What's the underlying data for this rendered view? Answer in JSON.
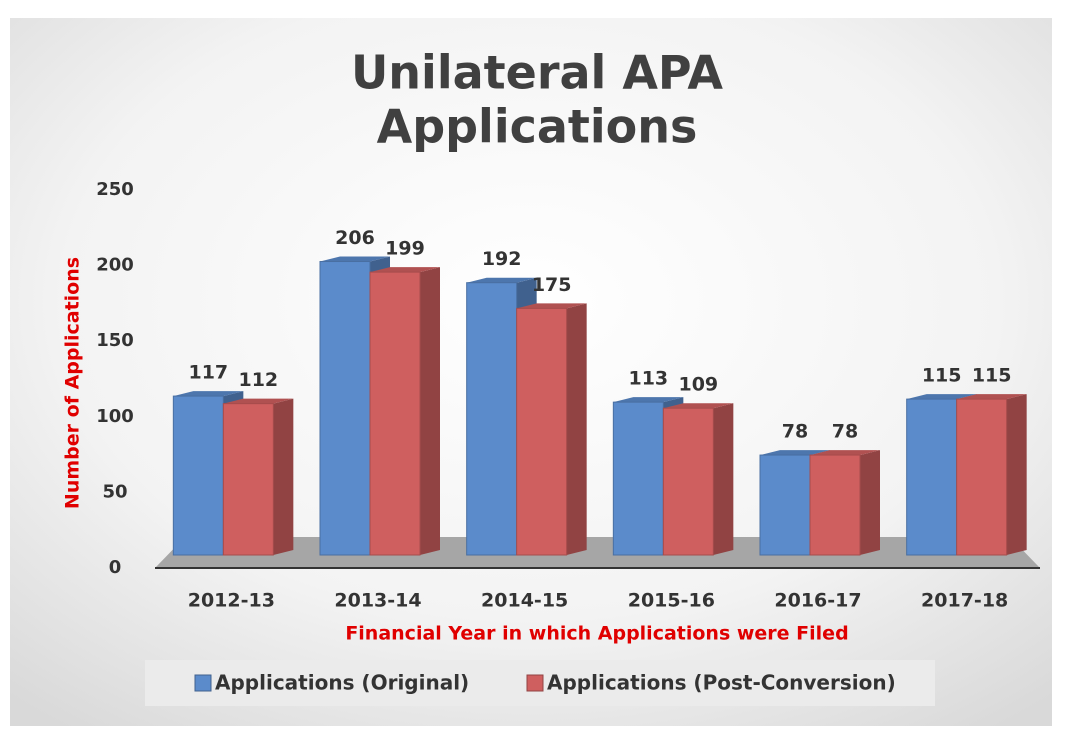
{
  "chart_data": {
    "type": "bar",
    "title": [
      "Unilateral APA",
      "Applications"
    ],
    "categories": [
      "2012-13",
      "2013-14",
      "2014-15",
      "2015-16",
      "2016-17",
      "2017-18"
    ],
    "series": [
      {
        "name": "Applications (Original)",
        "color": "#5b8bcb",
        "values": [
          117,
          206,
          192,
          113,
          78,
          115
        ]
      },
      {
        "name": "Applications (Post-Conversion)",
        "color": "#cf5f5f",
        "values": [
          112,
          199,
          175,
          109,
          78,
          115
        ]
      }
    ],
    "ylim": [
      0,
      250
    ],
    "yticks": [
      0,
      50,
      100,
      150,
      200,
      250
    ],
    "x_label": "Financial Year in which Applications were Filed",
    "y_label": "Number of Applications",
    "legend": "bottom"
  }
}
